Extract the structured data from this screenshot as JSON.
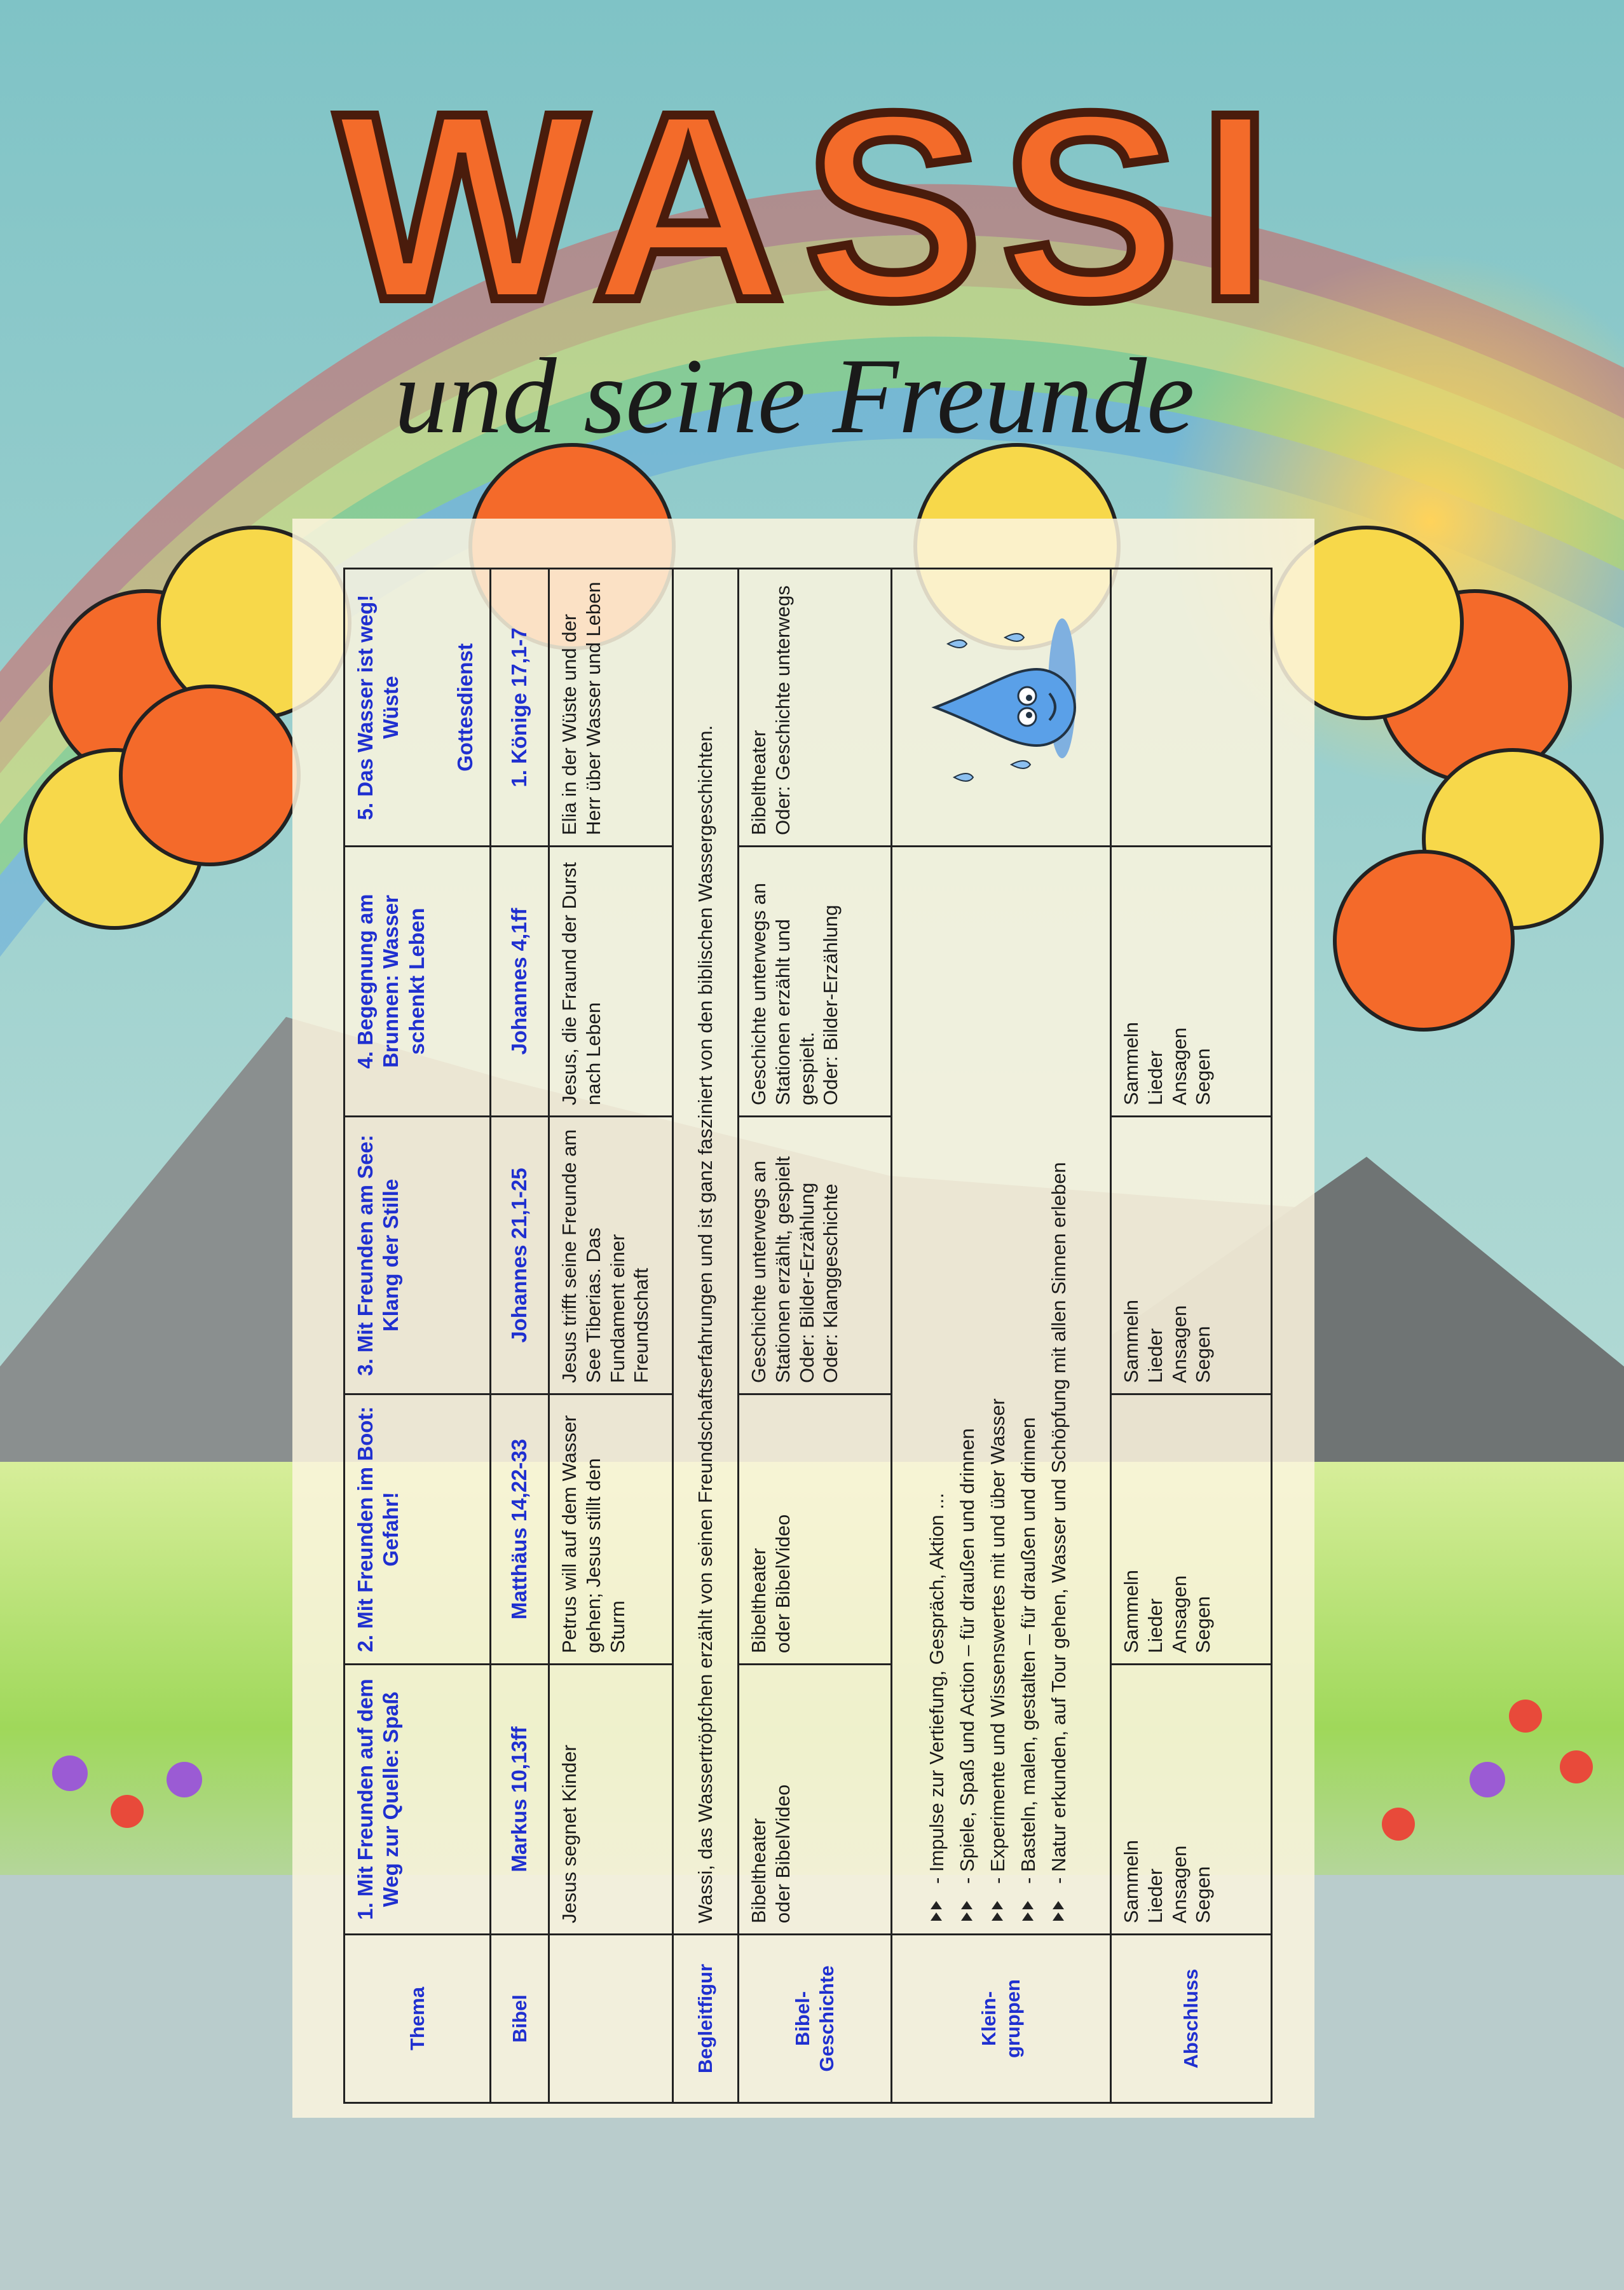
{
  "header": {
    "title": "WASSI",
    "subtitle": "und seine Freunde"
  },
  "table": {
    "row_labels": [
      "Thema",
      "Bibel",
      "Begleitfigur",
      "Bibel-Geschichte",
      "Klein-gruppen",
      "Abschluss"
    ],
    "themes": [
      "1. Mit Freunden auf dem Weg zur Quelle: Spaß",
      "2. Mit Freunden im Boot: Gefahr!",
      "3. Mit Freunden am See: Klang der Stille",
      "4. Begegnung am Brunnen: Wasser schenkt Leben",
      "5. Das Wasser ist weg! Wüste"
    ],
    "theme_note": "Gottesdienst",
    "bible_refs": [
      "Markus 10,13ff",
      "Matthäus 14,22-33",
      "Johannes 21,1-25",
      "Johannes 4,1ff",
      "1. Könige 17,1-7"
    ],
    "bible_summaries": [
      "Jesus segnet Kinder",
      "Petrus will auf dem Wasser gehen; Jesus stillt den Sturm",
      "Jesus trifft seine Freunde am See Tiberias. Das Fundament einer Freundschaft",
      "Jesus, die Fraund der Durst nach Leben",
      "Elia in der Wüste und der Herr über Wasser und Leben"
    ],
    "companion": "Wassi, das Wassertröpfchen erzählt von seinen Freundschaftserfahrungen und ist ganz fasziniert von den biblischen Wassergeschichten.",
    "bible_stories": [
      [
        "Bibeltheater",
        "oder BibelVideo"
      ],
      [
        "Bibeltheater",
        "oder BibelVideo"
      ],
      [
        "Geschichte unterwegs an Stationen erzählt, gespielt",
        "Oder: Bilder-Erzählung",
        "Oder: Klanggeschichte"
      ],
      [
        "Geschichte unterwegs an Stationen erzählt und gespielt.",
        "Oder: Bilder-Erzählung"
      ],
      [
        "Bibeltheater",
        "Oder: Geschichte unterwegs"
      ]
    ],
    "small_groups": [
      "- Impulse zur Vertiefung, Gespräch, Aktion ...",
      "- Spiele, Spaß und Action – für draußen und drinnen",
      "- Experimente und Wissenswertes mit und über Wasser",
      "- Basteln, malen, gestalten – für draußen und drinnen",
      "- Natur erkunden, auf Tour gehen, Wasser und Schöpfung mit allen Sinnen erleben"
    ],
    "closing": [
      [
        "Sammeln",
        "Lieder",
        "Ansagen",
        "Segen"
      ],
      [
        "Sammeln",
        "Lieder",
        "Ansagen",
        "Segen"
      ],
      [
        "Sammeln",
        "Lieder",
        "Ansagen",
        "Segen"
      ],
      [
        "Sammeln",
        "Lieder",
        "Ansagen",
        "Segen"
      ]
    ]
  }
}
